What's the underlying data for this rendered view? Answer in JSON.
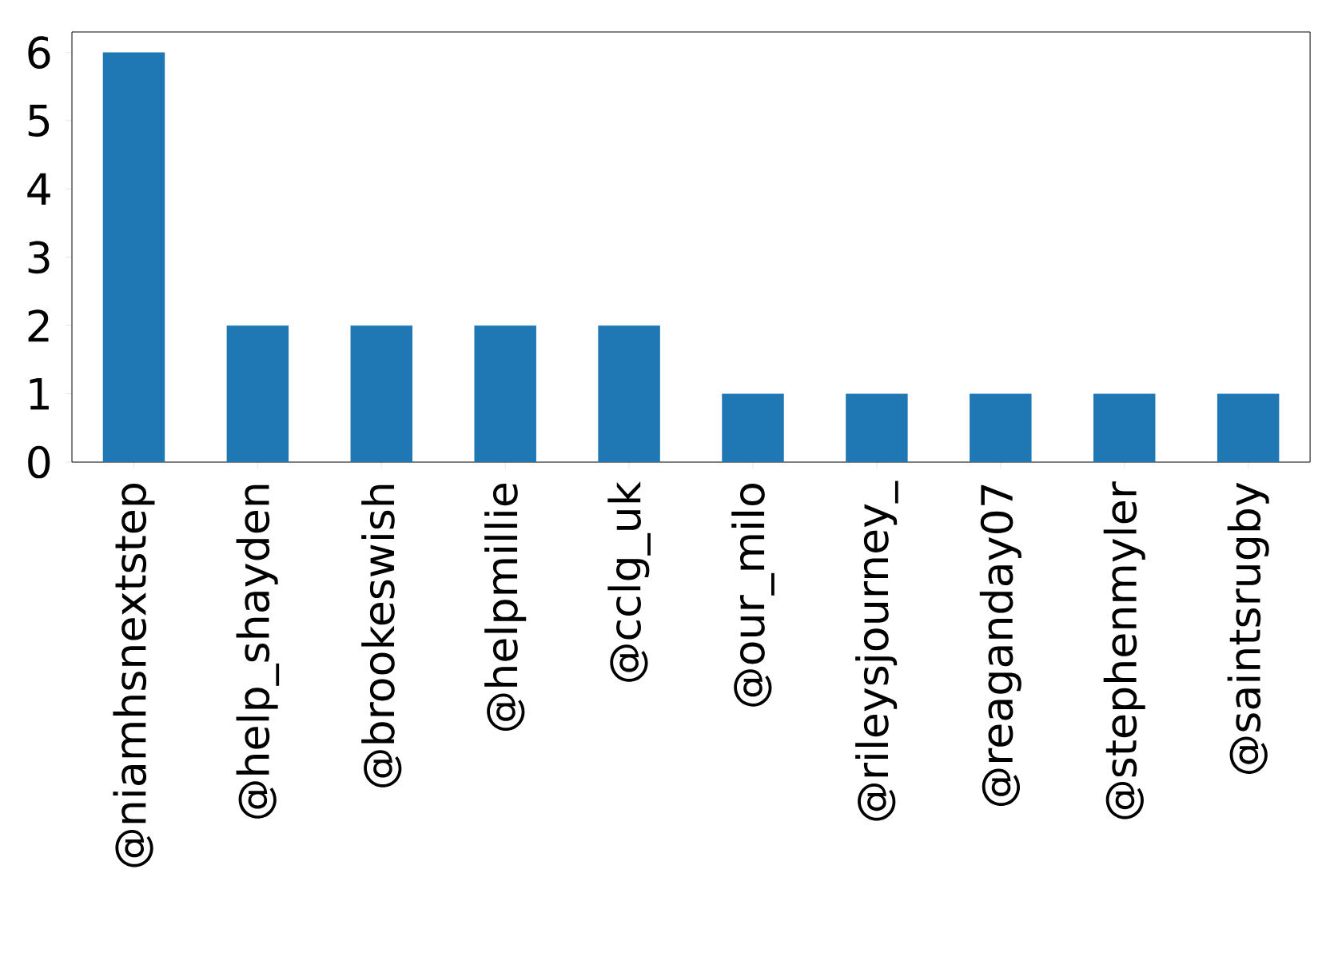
{
  "chart_data": {
    "type": "bar",
    "categories": [
      "@niamhsnextstep",
      "@help_shayden",
      "@brookeswish",
      "@helpmillie",
      "@cclg_uk",
      "@our_milo",
      "@rileysjourney_",
      "@reaganday07",
      "@stephenmyler",
      "@saintsrugby"
    ],
    "values": [
      6,
      2,
      2,
      2,
      2,
      1,
      1,
      1,
      1,
      1
    ],
    "color": "#1f77b4",
    "ylim": [
      0,
      6.3
    ],
    "yticks": [
      0,
      1,
      2,
      3,
      4,
      5,
      6
    ]
  }
}
